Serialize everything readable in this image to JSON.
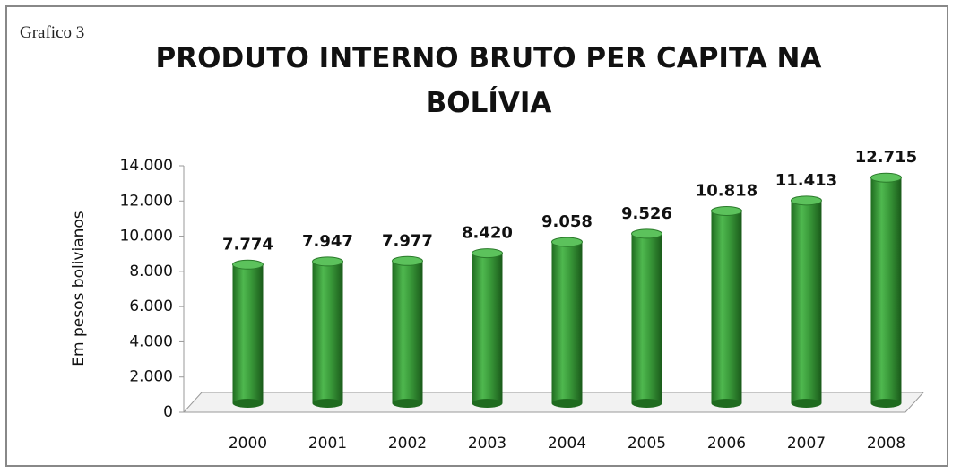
{
  "chart_data": {
    "type": "bar",
    "annotation": "Grafico  3",
    "title": "PRODUTO INTERNO BRUTO PER CAPITA NA BOLÍVIA",
    "y_label": "Em pesos bolivianos",
    "categories": [
      "2000",
      "2001",
      "2002",
      "2003",
      "2004",
      "2005",
      "2006",
      "2007",
      "2008"
    ],
    "values": [
      7774,
      7947,
      7977,
      8420,
      9058,
      9526,
      10818,
      11413,
      12715
    ],
    "value_labels": [
      "7.774",
      "7.947",
      "7.977",
      "8.420",
      "9.058",
      "9.526",
      "10.818",
      "11.413",
      "12.715"
    ],
    "color": "#3a9a3a",
    "ylim": [
      0,
      14000
    ],
    "yticks": [
      0,
      {
        "value": 2000,
        "label": "2.000"
      },
      {
        "value": 4000,
        "label": "4.000"
      },
      {
        "value": 6000,
        "label": "6.000"
      },
      {
        "value": 8000,
        "label": "8.000"
      },
      {
        "value": 10000,
        "label": "10.000"
      },
      {
        "value": 12000,
        "label": "12.000"
      },
      {
        "value": 14000,
        "label": "14.000"
      }
    ]
  }
}
